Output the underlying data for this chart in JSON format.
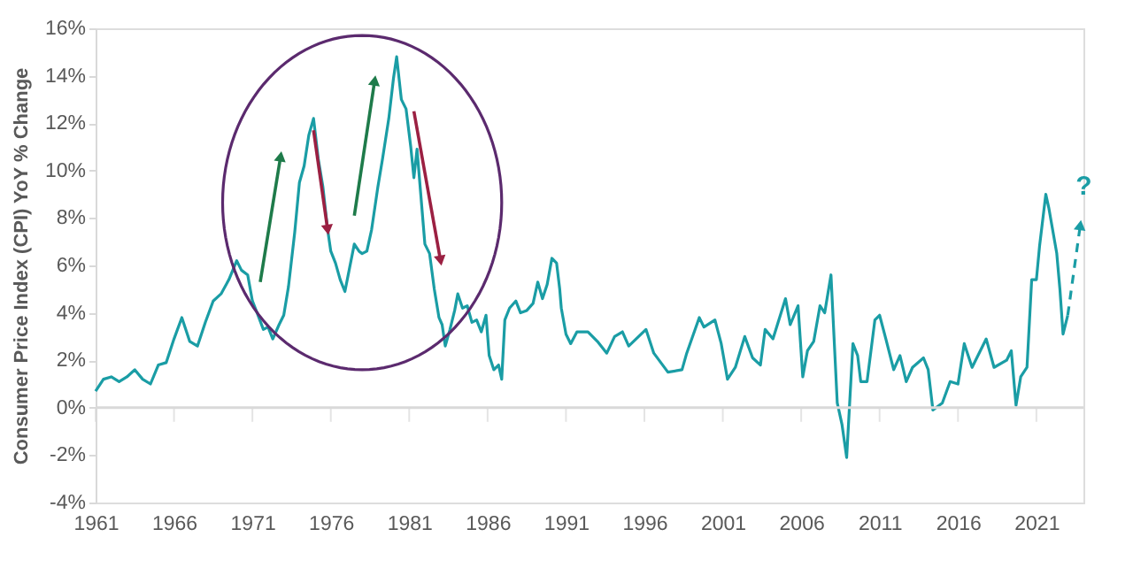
{
  "chart_data": {
    "type": "line",
    "ylabel": "Consumer Price Index (CPI) YoY % Change",
    "xlim": [
      1961,
      2024
    ],
    "xticks": [
      1961,
      1966,
      1971,
      1976,
      1981,
      1986,
      1991,
      1996,
      2001,
      2006,
      2011,
      2016,
      2021
    ],
    "ylim": [
      -4,
      16
    ],
    "yticks": [
      {
        "value": -4,
        "label": "-4%"
      },
      {
        "value": -2,
        "label": "-2%"
      },
      {
        "value": 0,
        "label": "0%"
      },
      {
        "value": 2,
        "label": "2%"
      },
      {
        "value": 4,
        "label": "4%"
      },
      {
        "value": 6,
        "label": "6%"
      },
      {
        "value": 8,
        "label": "8%"
      },
      {
        "value": 10,
        "label": "10%"
      },
      {
        "value": 12,
        "label": "12%"
      },
      {
        "value": 14,
        "label": "14%"
      },
      {
        "value": 16,
        "label": "16%"
      }
    ],
    "grid": false,
    "ref_lines": [
      {
        "axis": "y",
        "value": 0,
        "color": "#d9d9d9"
      }
    ],
    "annotations": [
      "?"
    ],
    "series": [
      {
        "color": "#1a9da5",
        "line_style": "solid",
        "x": [
          1961.0,
          1961.5,
          1962.0,
          1962.5,
          1963.0,
          1963.5,
          1964.0,
          1964.5,
          1965.0,
          1965.5,
          1966.0,
          1966.5,
          1967.0,
          1967.5,
          1968.0,
          1968.5,
          1969.0,
          1969.5,
          1970.0,
          1970.3,
          1970.7,
          1971.0,
          1971.3,
          1971.7,
          1972.0,
          1972.3,
          1972.7,
          1973.0,
          1973.3,
          1973.7,
          1974.0,
          1974.3,
          1974.6,
          1974.9,
          1975.2,
          1975.5,
          1975.8,
          1976.0,
          1976.3,
          1976.6,
          1976.9,
          1977.2,
          1977.5,
          1977.8,
          1978.0,
          1978.3,
          1978.6,
          1979.0,
          1979.3,
          1979.7,
          1980.0,
          1980.2,
          1980.5,
          1980.8,
          1981.1,
          1981.3,
          1981.5,
          1981.8,
          1982.0,
          1982.3,
          1982.6,
          1982.9,
          1983.1,
          1983.3,
          1983.6,
          1983.9,
          1984.1,
          1984.4,
          1984.7,
          1985.0,
          1985.3,
          1985.6,
          1985.9,
          1986.1,
          1986.4,
          1986.7,
          1986.9,
          1987.1,
          1987.4,
          1987.8,
          1988.1,
          1988.5,
          1988.9,
          1989.2,
          1989.5,
          1989.8,
          1990.1,
          1990.4,
          1990.6,
          1990.7,
          1991.0,
          1991.3,
          1991.7,
          1992.4,
          1993.0,
          1993.6,
          1994.1,
          1994.6,
          1995.0,
          1996.1,
          1996.6,
          1997.5,
          1998.4,
          1998.7,
          1999.5,
          1999.8,
          2000.5,
          2000.9,
          2001.3,
          2001.8,
          2002.4,
          2002.9,
          2003.4,
          2003.7,
          2004.2,
          2005.0,
          2005.3,
          2005.8,
          2006.1,
          2006.4,
          2006.8,
          2007.2,
          2007.5,
          2007.9,
          2008.3,
          2008.6,
          2008.9,
          2009.3,
          2009.6,
          2009.8,
          2010.2,
          2010.7,
          2011.0,
          2011.4,
          2011.9,
          2012.3,
          2012.7,
          2013.1,
          2013.8,
          2014.1,
          2014.4,
          2015.0,
          2015.5,
          2016.0,
          2016.4,
          2016.9,
          2017.8,
          2018.3,
          2019.1,
          2019.4,
          2019.7,
          2020.0,
          2020.4,
          2020.7,
          2021.0,
          2021.2,
          2021.6,
          2021.8,
          2022.3,
          2022.5,
          2022.7,
          2023.0
        ],
        "values": [
          0.7,
          1.2,
          1.3,
          1.1,
          1.3,
          1.6,
          1.2,
          1.0,
          1.8,
          1.9,
          2.9,
          3.8,
          2.8,
          2.6,
          3.6,
          4.5,
          4.8,
          5.4,
          6.2,
          5.8,
          5.6,
          4.5,
          4.0,
          3.3,
          3.4,
          2.9,
          3.5,
          3.9,
          5.1,
          7.4,
          9.5,
          10.2,
          11.5,
          12.2,
          10.5,
          9.3,
          7.5,
          6.6,
          6.1,
          5.4,
          4.9,
          5.9,
          6.9,
          6.6,
          6.5,
          6.6,
          7.5,
          9.3,
          10.5,
          12.2,
          13.9,
          14.8,
          13.0,
          12.6,
          11.0,
          9.7,
          10.9,
          8.5,
          6.9,
          6.5,
          5.0,
          3.8,
          3.5,
          2.6,
          3.3,
          4.1,
          4.8,
          4.2,
          4.3,
          3.6,
          3.7,
          3.2,
          3.9,
          2.2,
          1.6,
          1.8,
          1.2,
          3.7,
          4.2,
          4.5,
          4.0,
          4.1,
          4.4,
          5.3,
          4.6,
          5.2,
          6.3,
          6.1,
          5.0,
          4.2,
          3.1,
          2.7,
          3.2,
          3.2,
          2.8,
          2.3,
          3.0,
          3.2,
          2.6,
          3.3,
          2.3,
          1.5,
          1.6,
          2.3,
          3.8,
          3.4,
          3.7,
          2.7,
          1.2,
          1.7,
          3.0,
          2.1,
          1.8,
          3.3,
          2.9,
          4.6,
          3.5,
          4.3,
          1.3,
          2.4,
          2.8,
          4.3,
          4.0,
          5.6,
          0.2,
          -0.7,
          -2.1,
          2.7,
          2.2,
          1.1,
          1.1,
          3.7,
          3.9,
          2.9,
          1.6,
          2.2,
          1.1,
          1.7,
          2.1,
          1.6,
          -0.1,
          0.2,
          1.1,
          1.0,
          2.7,
          1.7,
          2.9,
          1.7,
          2.0,
          2.4,
          0.1,
          1.3,
          1.7,
          5.4,
          5.4,
          6.8,
          9.0,
          8.4,
          6.5,
          5.0,
          3.1,
          3.9
        ]
      },
      {
        "color": "#1a9da5",
        "line_style": "dashed",
        "x": [
          2023.0,
          2023.8
        ],
        "values": [
          3.9,
          7.7
        ]
      }
    ]
  }
}
